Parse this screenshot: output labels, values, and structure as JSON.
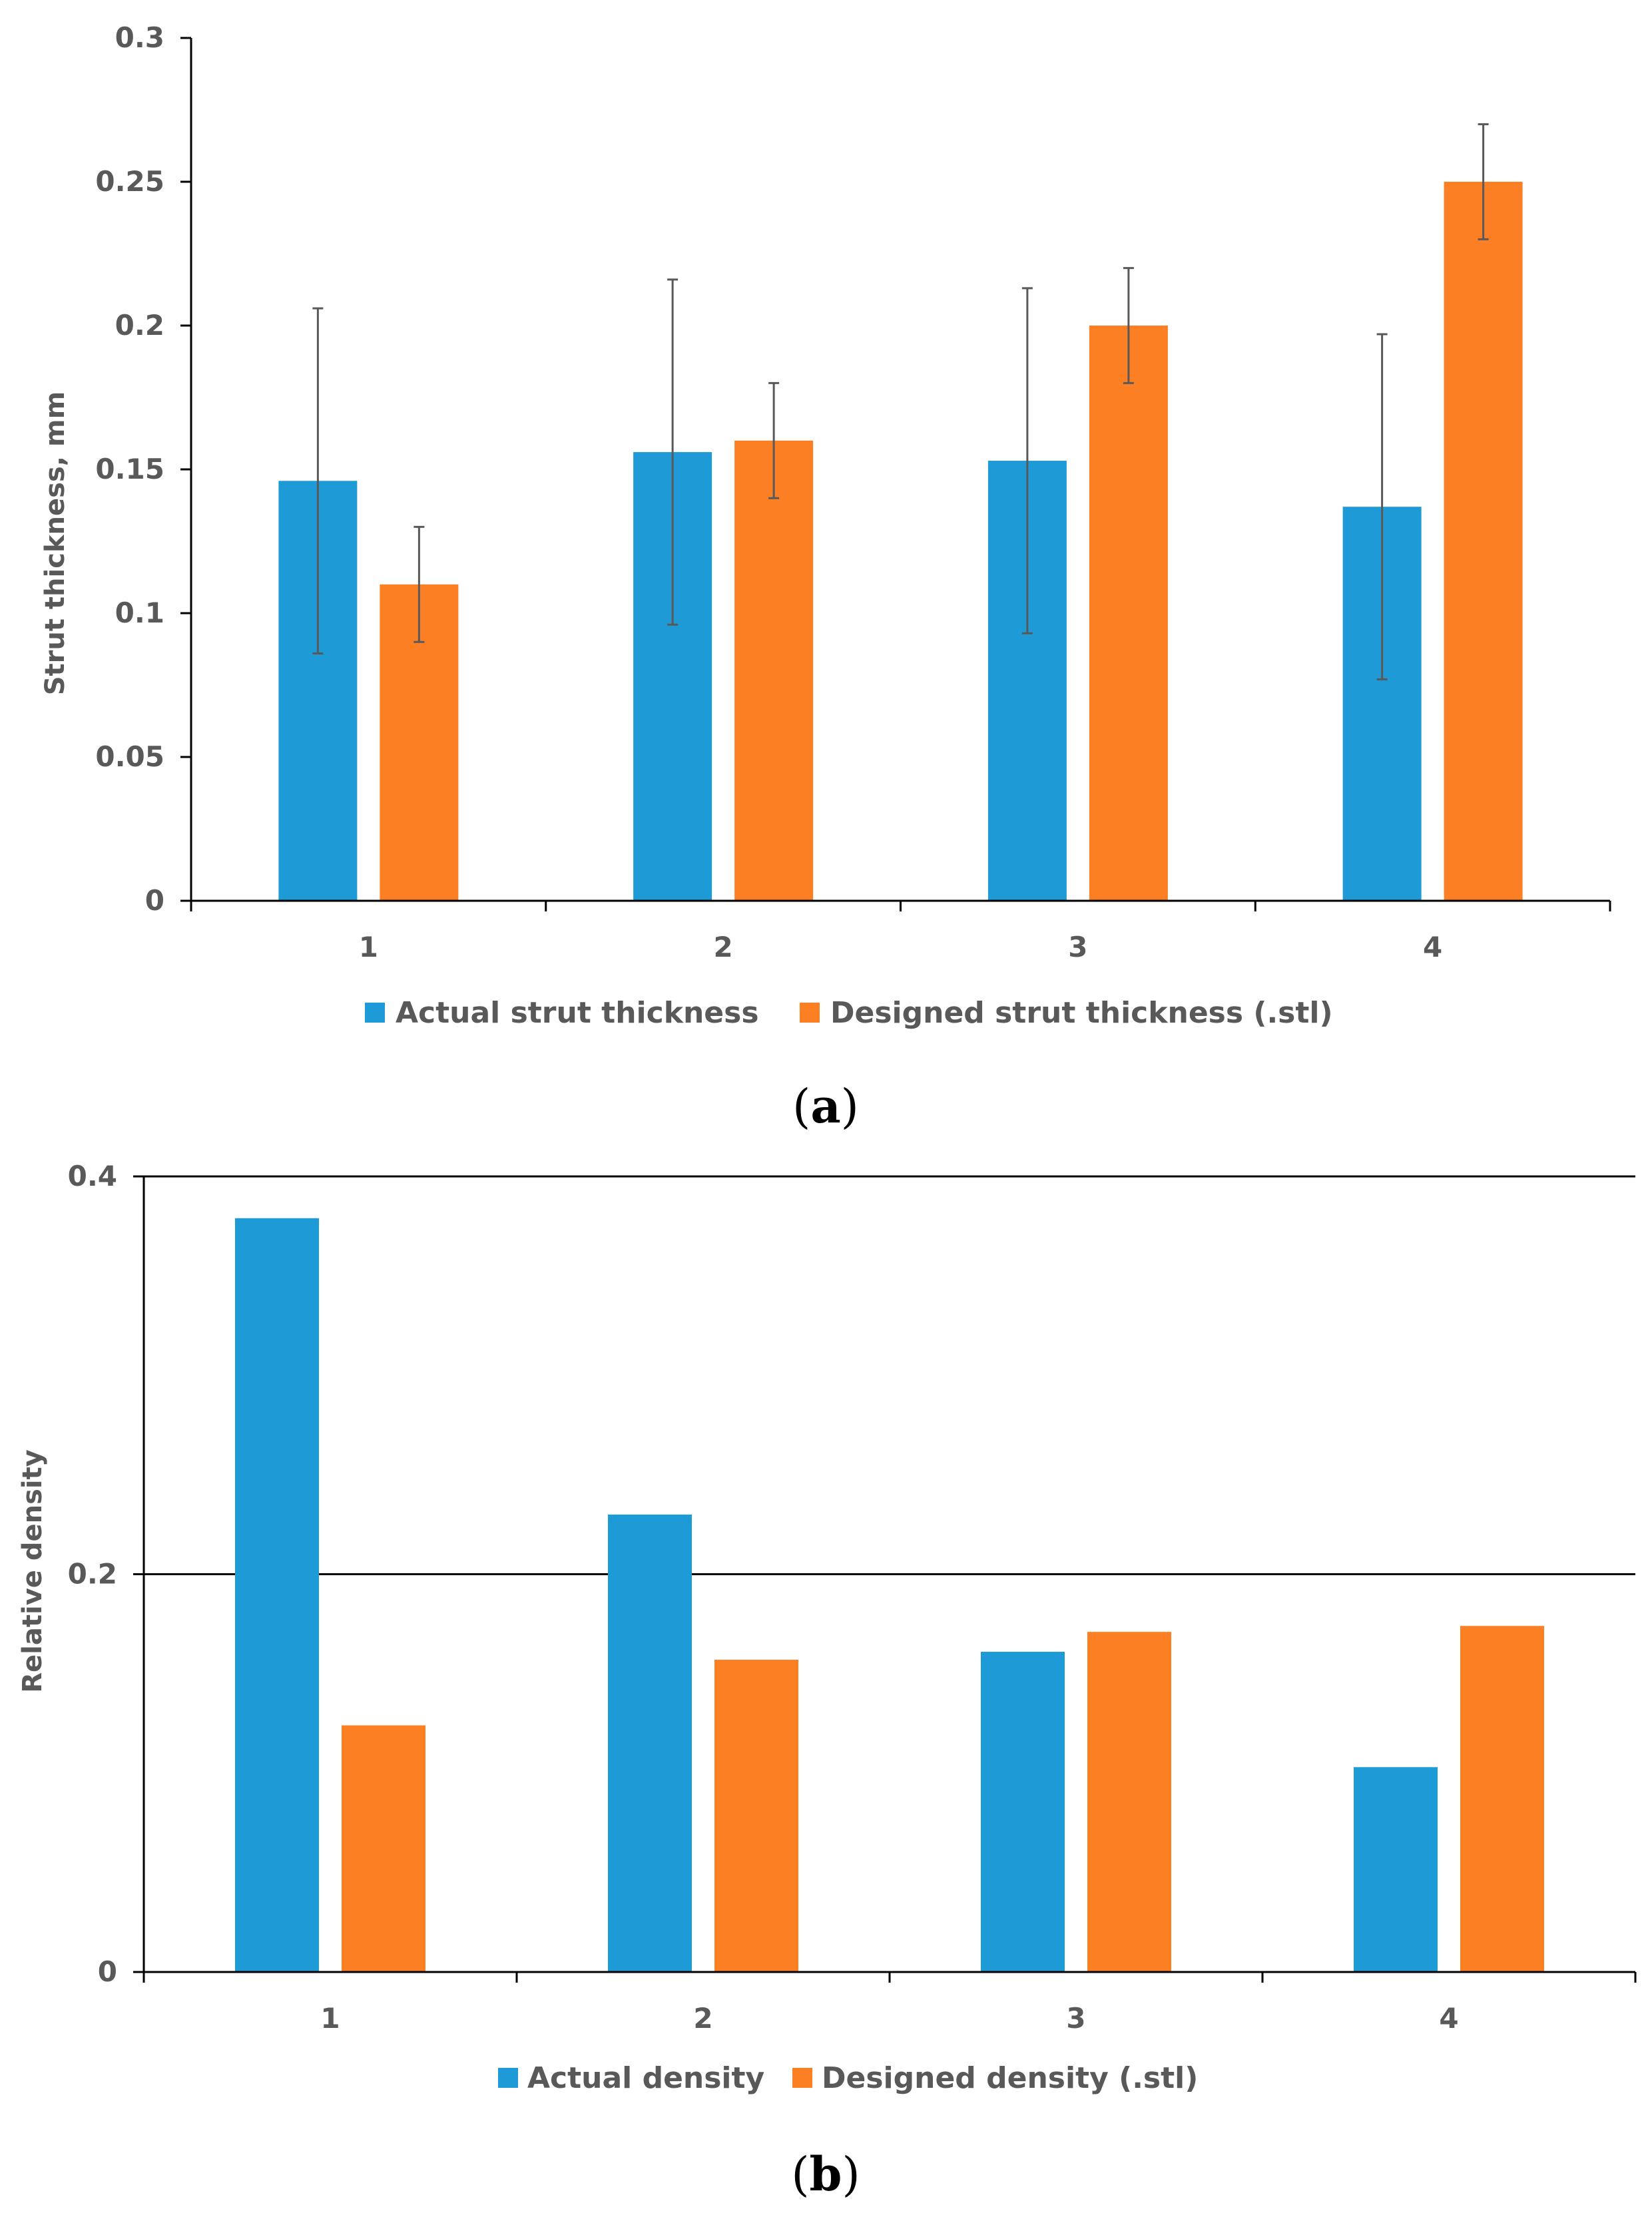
{
  "chart_data": [
    {
      "panel_label": "a",
      "type": "bar",
      "categories": [
        "1",
        "2",
        "3",
        "4"
      ],
      "series": [
        {
          "name": "Actual strut thickness",
          "color": "#1E9BD7",
          "values": [
            0.146,
            0.156,
            0.153,
            0.137
          ],
          "error": [
            0.06,
            0.06,
            0.06,
            0.06
          ]
        },
        {
          "name": "Designed strut thickness (.stl)",
          "color": "#FD7F23",
          "values": [
            0.11,
            0.16,
            0.2,
            0.25
          ],
          "error": [
            0.02,
            0.02,
            0.02,
            0.02
          ]
        }
      ],
      "title": "",
      "xlabel": "",
      "ylabel": "Strut thickness, mm",
      "ylim": [
        0,
        0.3
      ],
      "yticks": [
        0,
        0.05,
        0.1,
        0.15,
        0.2,
        0.25,
        0.3
      ],
      "ytick_labels": [
        "0",
        "0.05",
        "0.1",
        "0.15",
        "0.2",
        "0.25",
        "0.3"
      ],
      "grid": false,
      "legend_position": "bottom"
    },
    {
      "panel_label": "b",
      "type": "bar",
      "categories": [
        "1",
        "2",
        "3",
        "4"
      ],
      "series": [
        {
          "name": "Actual density",
          "color": "#1E9BD7",
          "values": [
            0.379,
            0.23,
            0.161,
            0.103
          ]
        },
        {
          "name": "Designed density (.stl)",
          "color": "#FD7F23",
          "values": [
            0.124,
            0.157,
            0.171,
            0.174
          ]
        }
      ],
      "title": "",
      "xlabel": "",
      "ylabel": "Relative density",
      "ylim": [
        0,
        0.4
      ],
      "yticks": [
        0,
        0.2,
        0.4
      ],
      "ytick_labels": [
        "0",
        "0.2",
        "0.4"
      ],
      "grid": true,
      "legend_position": "bottom"
    }
  ]
}
